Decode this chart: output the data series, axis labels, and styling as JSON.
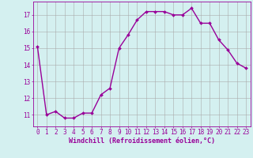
{
  "x": [
    0,
    1,
    2,
    3,
    4,
    5,
    6,
    7,
    8,
    9,
    10,
    11,
    12,
    13,
    14,
    15,
    16,
    17,
    18,
    19,
    20,
    21,
    22,
    23
  ],
  "y": [
    15.1,
    11.0,
    11.2,
    10.8,
    10.8,
    11.1,
    11.1,
    12.2,
    12.6,
    15.0,
    15.8,
    16.7,
    17.2,
    17.2,
    17.2,
    17.0,
    17.0,
    17.4,
    16.5,
    16.5,
    15.5,
    14.9,
    14.1,
    13.8
  ],
  "line_color": "#990099",
  "marker": "D",
  "marker_size": 2.0,
  "line_width": 1.0,
  "bg_color": "#d4f0f0",
  "grid_color": "#aaaaaa",
  "xlabel": "Windchill (Refroidissement éolien,°C)",
  "xlabel_fontsize": 6.0,
  "tick_fontsize": 5.5,
  "ylim": [
    10.3,
    17.8
  ],
  "yticks": [
    11,
    12,
    13,
    14,
    15,
    16,
    17
  ],
  "xticks": [
    0,
    1,
    2,
    3,
    4,
    5,
    6,
    7,
    8,
    9,
    10,
    11,
    12,
    13,
    14,
    15,
    16,
    17,
    18,
    19,
    20,
    21,
    22,
    23
  ],
  "title_color": "#990099",
  "axis_color": "#990099"
}
